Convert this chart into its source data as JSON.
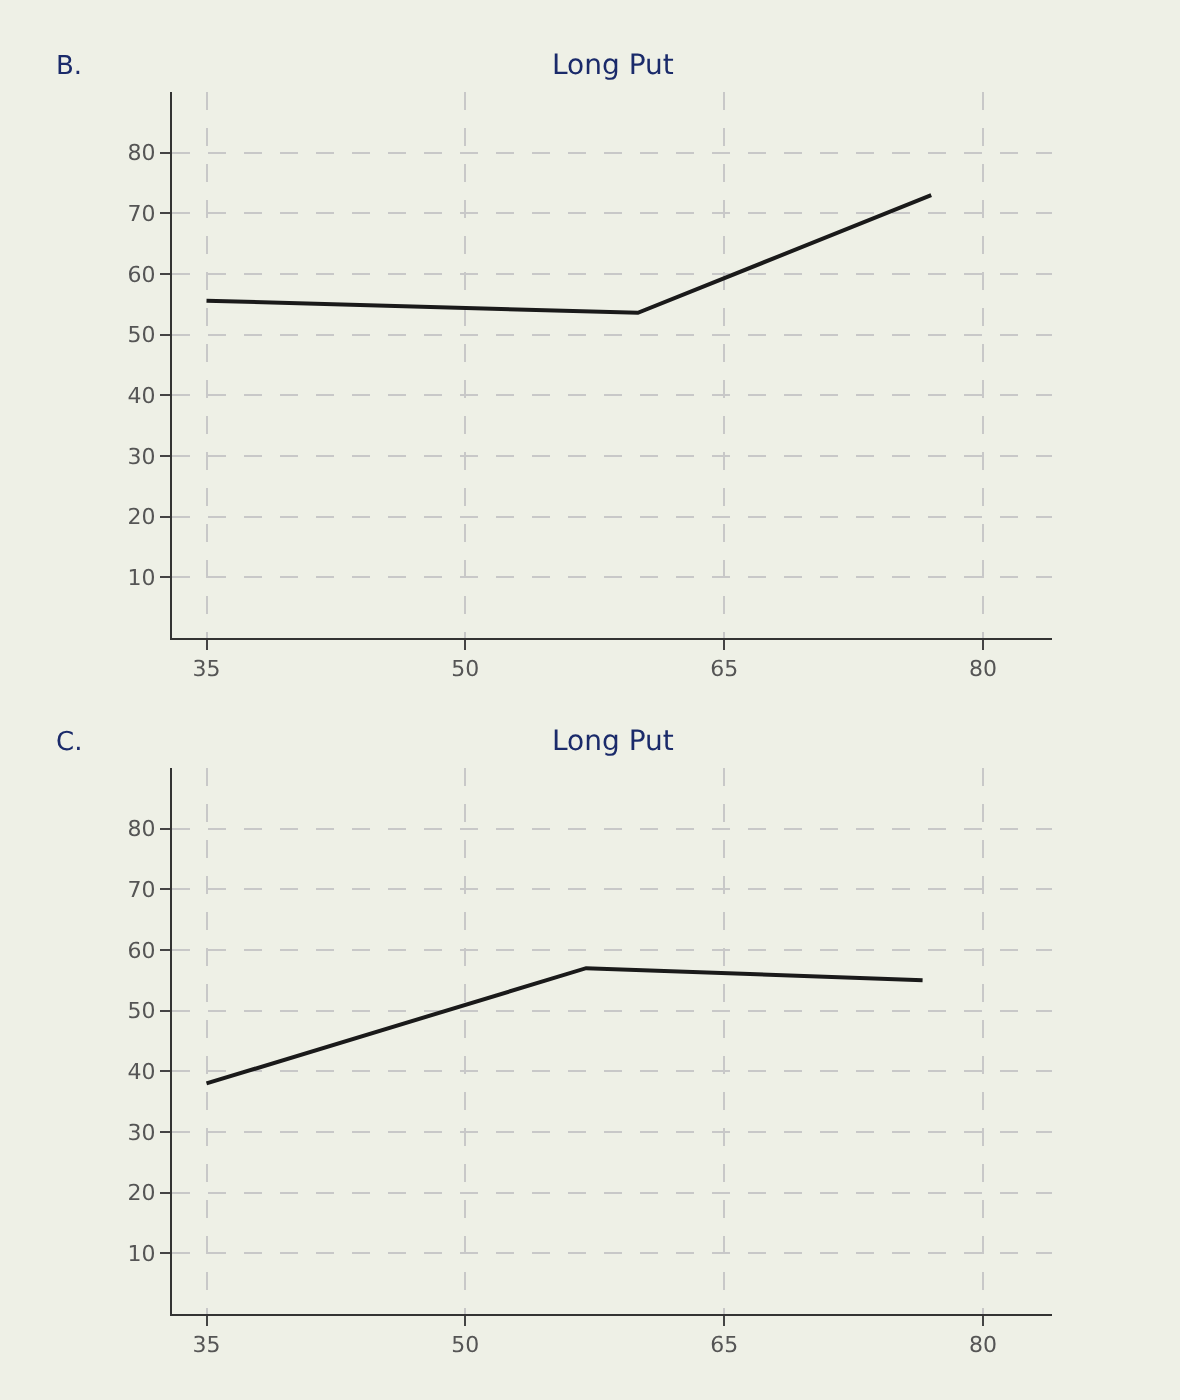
{
  "chart_data": [
    {
      "type": "line",
      "title": "Long Put",
      "annotations": [
        "B."
      ],
      "x": [
        35,
        60,
        77
      ],
      "series": [
        {
          "color": "#1a1a1a",
          "values": [
            55.6,
            53.6,
            73
          ]
        }
      ],
      "xlim": [
        33,
        84
      ],
      "ylim": [
        0,
        90
      ],
      "xticks": [
        35,
        50,
        65,
        80
      ],
      "yticks": [
        10,
        20,
        30,
        40,
        50,
        60,
        70,
        80
      ],
      "grid": true,
      "line_style": "solid"
    },
    {
      "type": "line",
      "title": "Long Put",
      "annotations": [
        "C."
      ],
      "x": [
        35,
        57,
        76.5
      ],
      "series": [
        {
          "color": "#1a1a1a",
          "values": [
            38,
            57,
            55
          ]
        }
      ],
      "xlim": [
        33,
        84
      ],
      "ylim": [
        0,
        90
      ],
      "xticks": [
        35,
        50,
        65,
        80
      ],
      "yticks": [
        10,
        20,
        30,
        40,
        50,
        60,
        70,
        80
      ],
      "grid": true,
      "line_style": "solid"
    }
  ]
}
